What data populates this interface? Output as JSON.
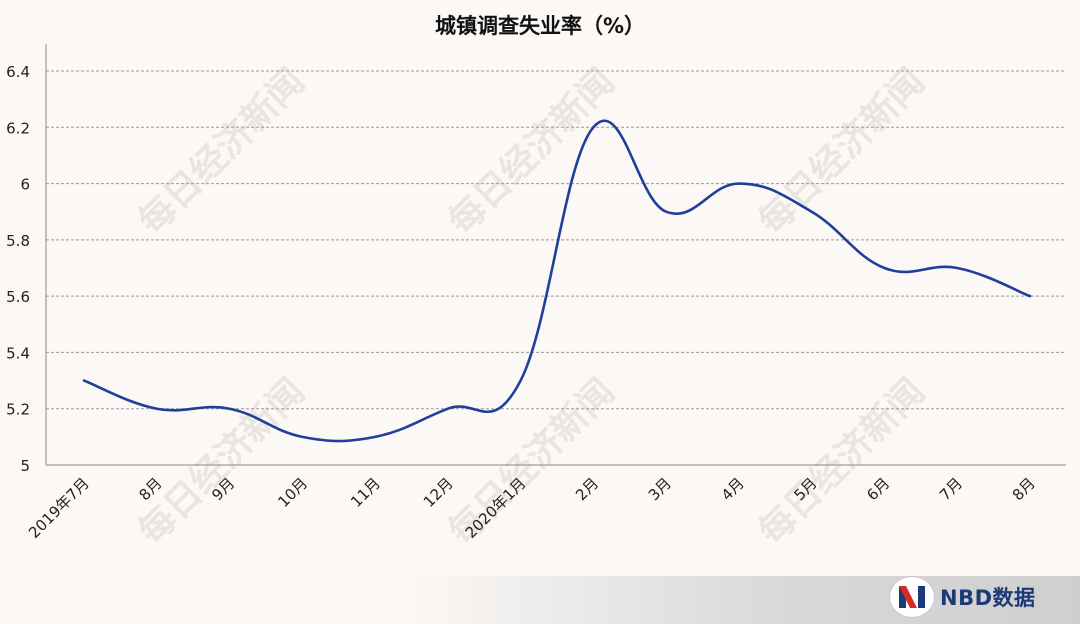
{
  "chart_data": {
    "type": "line",
    "title": "城镇调查失业率（%）",
    "categories": [
      "2019年7月",
      "8月",
      "9月",
      "10月",
      "11月",
      "12月",
      "2020年1月",
      "2月",
      "3月",
      "4月",
      "5月",
      "6月",
      "7月",
      "8月"
    ],
    "series": [
      {
        "values": [
          5.3,
          5.2,
          5.2,
          5.1,
          5.1,
          5.2,
          5.3,
          6.2,
          5.9,
          6.0,
          5.9,
          5.7,
          5.7,
          5.6
        ]
      }
    ],
    "ylim": [
      5,
      6.4
    ],
    "yticks": [
      "5",
      "5.2",
      "5.4",
      "5.6",
      "5.8",
      "6",
      "6.2",
      "6.4"
    ],
    "grid": true,
    "line_color": "#1f3f9a"
  },
  "watermark": "每日经济新闻",
  "brand": {
    "name": "NBD数据",
    "color": "#1d3a78",
    "accent": "#d62b27"
  }
}
